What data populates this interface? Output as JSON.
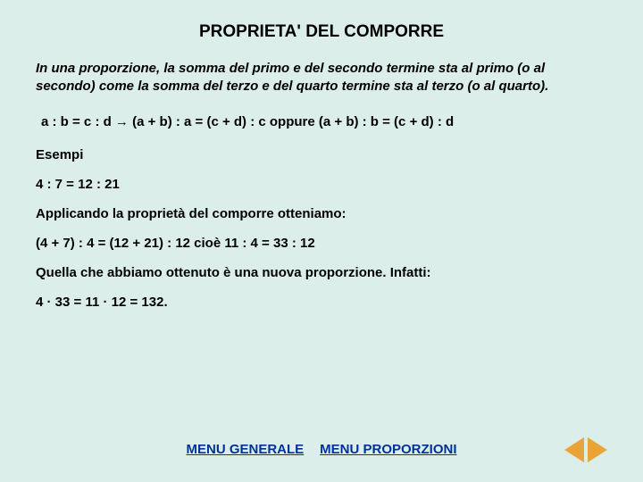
{
  "title": "PROPRIETA' DEL COMPORRE",
  "definition": "In una proporzione, la somma del primo e del secondo termine sta al primo (o al secondo) come la somma del terzo e del quarto termine sta al terzo (o al quarto).",
  "formula": "a : b = c : d   →   (a + b) : a = (c + d) : c  oppure  (a + b) : b = (c + d) : d",
  "examples_label": "Esempi",
  "line1": "4 : 7 = 12 : 21",
  "line2": "Applicando la proprietà del comporre otteniamo:",
  "line3": "(4 + 7) : 4 = (12 + 21) : 12  cioè  11 : 4 = 33 : 12",
  "line4": "Quella che abbiamo ottenuto è una nuova proporzione. Infatti:",
  "line5": "4 · 33 = 11 · 12 = 132.",
  "nav": {
    "menu_general": "MENU GENERALE",
    "menu_proporzioni": "MENU PROPORZIONI"
  },
  "colors": {
    "background": "#dbeee9",
    "text": "#000000",
    "link": "#003399",
    "arrow": "#e8a437"
  }
}
